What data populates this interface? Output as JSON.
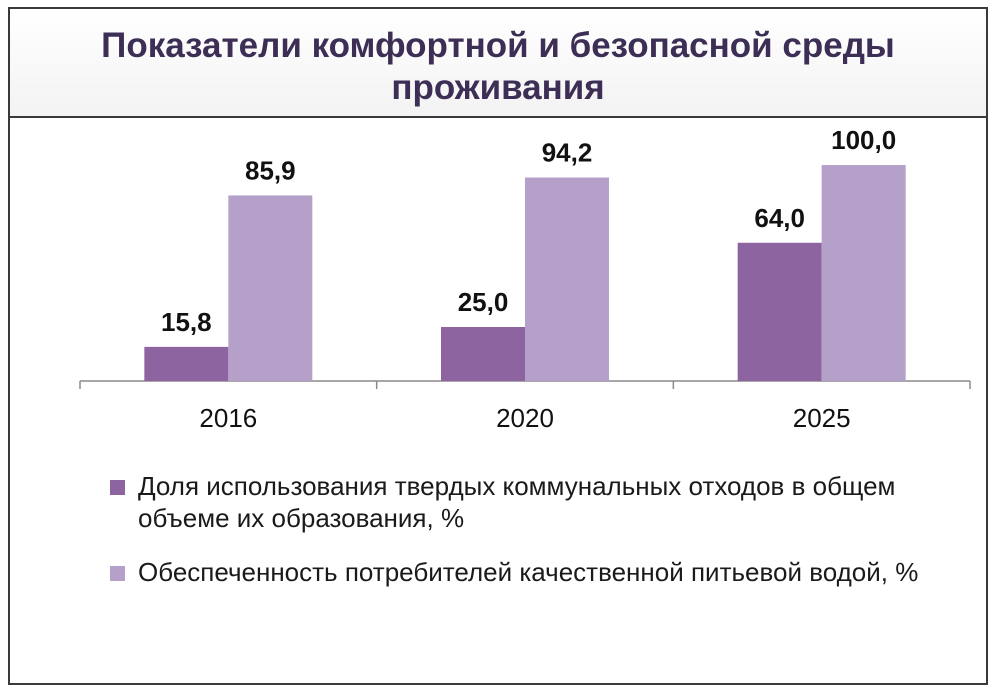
{
  "title": "Показатели комфортной и безопасной среды проживания",
  "colors": {
    "series1": "#8d64a0",
    "series2": "#b5a0c9",
    "title": "#3d2e55"
  },
  "chart_data": {
    "type": "bar",
    "title": "Показатели комфортной и безопасной среды проживания",
    "categories": [
      "2016",
      "2020",
      "2025"
    ],
    "series": [
      {
        "name": "Доля использования твердых коммунальных отходов в общем объеме их образования, %",
        "values": [
          15.8,
          25.0,
          64.0
        ],
        "labels": [
          "15,8",
          "25,0",
          "64,0"
        ]
      },
      {
        "name": "Обеспеченность потребителей качественной питьевой водой, %",
        "values": [
          85.9,
          94.2,
          100.0
        ],
        "labels": [
          "85,9",
          "94,2",
          "100,0"
        ]
      }
    ],
    "ylim": [
      0,
      100
    ],
    "grid": false,
    "legend": "bottom"
  }
}
